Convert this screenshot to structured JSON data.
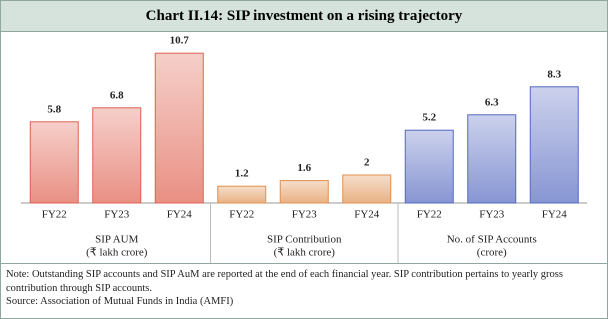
{
  "chart_data": {
    "type": "bar",
    "title": "Chart II.14: SIP investment on a rising trajectory",
    "groups": [
      {
        "label": [
          "SIP AUM",
          "(₹ lakh crore)"
        ],
        "categories": [
          "FY22",
          "FY23",
          "FY24"
        ],
        "values": [
          5.8,
          6.8,
          10.7
        ],
        "color": "#e0604f"
      },
      {
        "label": [
          "SIP Contribution",
          "(₹ lakh crore)"
        ],
        "categories": [
          "FY22",
          "FY23",
          "FY24"
        ],
        "values": [
          1.2,
          1.6,
          2
        ],
        "color": "#e0904f"
      },
      {
        "label": [
          "No. of SIP Accounts",
          "(crore)"
        ],
        "categories": [
          "FY22",
          "FY23",
          "FY24"
        ],
        "values": [
          5.2,
          6.3,
          8.3
        ],
        "color": "#5468c0"
      }
    ],
    "note": "Note: Outstanding SIP accounts and SIP AuM are reported at the end of each financial year. SIP contribution pertains to yearly gross contribution through SIP accounts.",
    "source": "Source: Association of Mutual Funds in India (AMFI)"
  }
}
